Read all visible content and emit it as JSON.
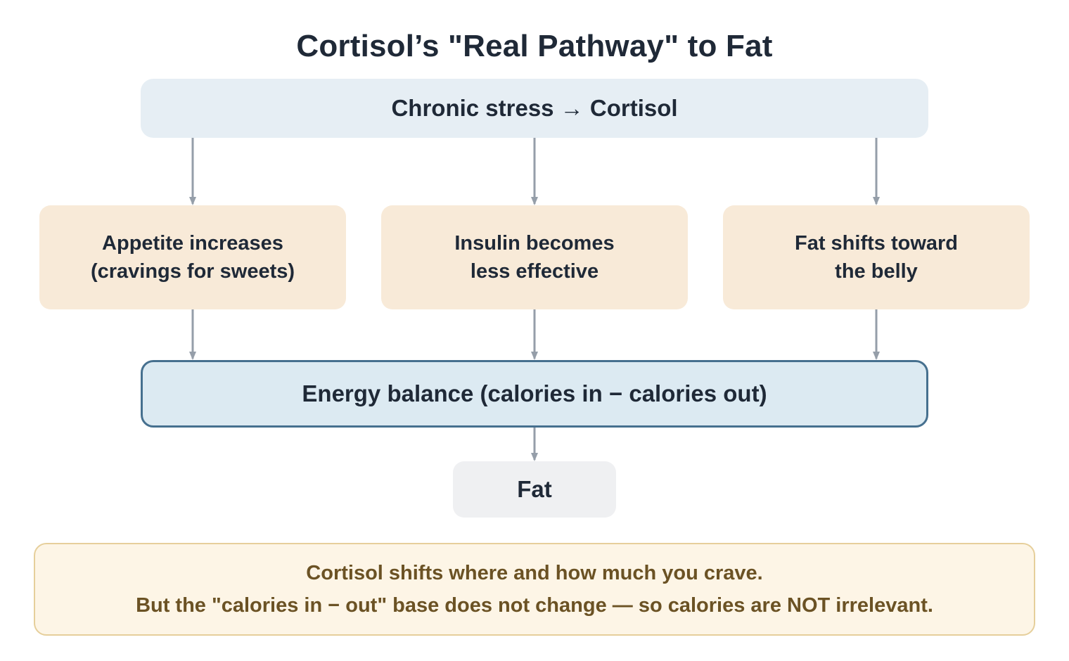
{
  "title": "Cortisol’s \"Real Pathway\" to Fat",
  "nodes": {
    "source": "Chronic stress → Cortisol",
    "effects": [
      {
        "line1": "Appetite increases",
        "line2": "(cravings for sweets)"
      },
      {
        "line1": "Insulin becomes",
        "line2": "less effective"
      },
      {
        "line1": "Fat shifts toward",
        "line2": "the belly"
      }
    ],
    "energy_balance": "Energy balance (calories in − calories out)",
    "result": "Fat"
  },
  "note": {
    "line1": "Cortisol shifts where and how much you crave.",
    "line2": "But the \"calories in − out\" base does not change — so calories are NOT irrelevant."
  },
  "colors": {
    "arrow": "#959ea9",
    "energy_border": "#46708f",
    "note_text": "#6b5224",
    "effect_fill": "#f8ead8",
    "source_fill": "#e6eef4"
  }
}
